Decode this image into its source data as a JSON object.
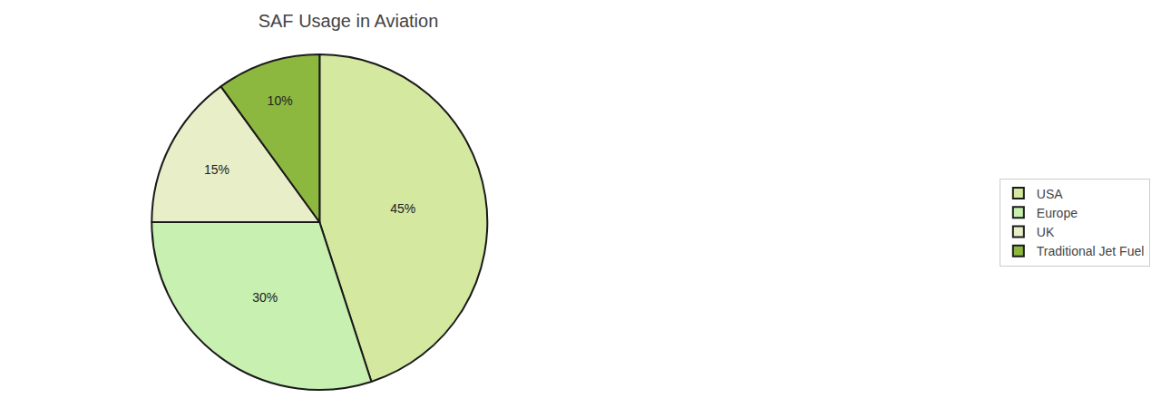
{
  "chart_data": {
    "type": "pie",
    "title": "SAF Usage in Aviation",
    "categories": [
      "USA",
      "Europe",
      "UK",
      "Traditional Jet Fuel"
    ],
    "values": [
      45,
      30,
      15,
      10
    ],
    "value_labels": [
      "45%",
      "30%",
      "15%",
      "10%"
    ],
    "colors": [
      "#d4e8a0",
      "#c8f0b0",
      "#e8efc8",
      "#8db840"
    ],
    "data_labels": true,
    "legend": "right"
  }
}
